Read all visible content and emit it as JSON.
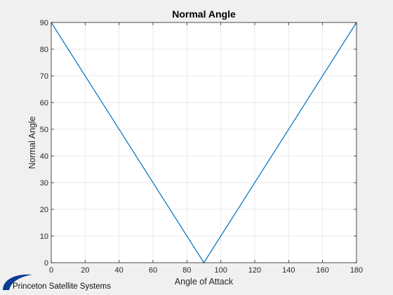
{
  "chart_data": {
    "type": "line",
    "title": "Normal Angle",
    "xlabel": "Angle of Attack",
    "ylabel": "Normal Angle",
    "xlim": [
      0,
      180
    ],
    "ylim": [
      0,
      90
    ],
    "xticks": [
      0,
      20,
      40,
      60,
      80,
      100,
      120,
      140,
      160,
      180
    ],
    "yticks": [
      0,
      10,
      20,
      30,
      40,
      50,
      60,
      70,
      80,
      90
    ],
    "grid": true,
    "series": [
      {
        "color": "#0072bd",
        "x": [
          0,
          90,
          180
        ],
        "y": [
          90,
          0,
          90
        ]
      }
    ]
  },
  "logo": {
    "text": "Princeton Satellite Systems",
    "color": "#0a3d91"
  }
}
